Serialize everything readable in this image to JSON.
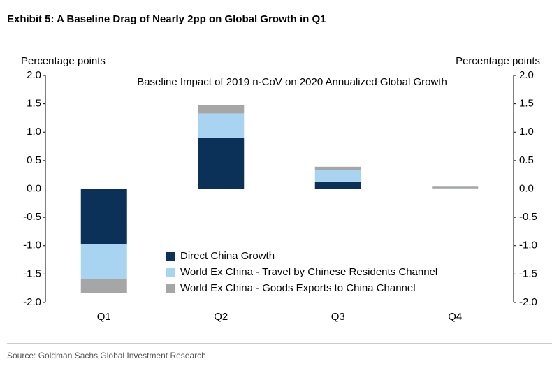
{
  "chart_data": {
    "type": "stacked_bar",
    "title": "Exhibit 5: A Baseline Drag of Nearly 2pp on Global Growth in Q1",
    "subtitle": "Baseline Impact of 2019 n-CoV on 2020 Annualized Global Growth",
    "y_label": "Percentage points",
    "y2_label": "Percentage points",
    "source": "Source: Goldman Sachs Global Investment Research",
    "categories": [
      "Q1",
      "Q2",
      "Q3",
      "Q4"
    ],
    "series": [
      {
        "name": "Direct China Growth",
        "color": "#0b3158",
        "values": [
          -0.97,
          0.9,
          0.13,
          0.0
        ]
      },
      {
        "name": "World Ex China - Travel by Chinese Residents Channel",
        "color": "#a9d4f1",
        "values": [
          -0.62,
          0.43,
          0.2,
          0.01
        ]
      },
      {
        "name": "World Ex China - Goods Exports to China Channel",
        "color": "#a6a6a6",
        "values": [
          -0.24,
          0.15,
          0.06,
          0.03
        ]
      }
    ],
    "ylim": [
      -2,
      2
    ],
    "yticks": [
      {
        "value": 2,
        "label": "2.0"
      },
      1.5,
      {
        "value": 1,
        "label": "1.0"
      },
      0.5,
      {
        "value": 0,
        "label": "0.0"
      },
      -0.5,
      {
        "value": -1,
        "label": "-1.0"
      },
      -1.5,
      {
        "value": -2,
        "label": "-2.0"
      }
    ],
    "y2lim": [
      -2,
      2
    ],
    "y2ticks": [
      {
        "value": 2,
        "label": "2.0"
      },
      1.5,
      {
        "value": 1,
        "label": "1.0"
      },
      0.5,
      {
        "value": 0,
        "label": "0.0"
      },
      -0.5,
      {
        "value": -1,
        "label": "-1.0"
      },
      -1.5,
      {
        "value": -2,
        "label": "-2.0"
      }
    ]
  }
}
